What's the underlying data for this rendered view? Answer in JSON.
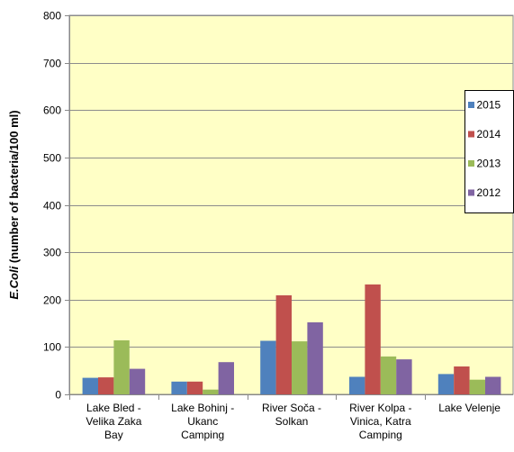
{
  "chart_data": {
    "type": "bar",
    "ylabel_italic": "E.Coli",
    "ylabel_rest": " (number of bacteria/100 ml)",
    "ylim": [
      0,
      800
    ],
    "yticks": [
      0,
      100,
      200,
      300,
      400,
      500,
      600,
      700,
      800
    ],
    "grid": true,
    "legend_position": "right",
    "plot_background": "#ffffc6",
    "categories": [
      [
        "Lake Bled -",
        "Velika Zaka",
        "Bay"
      ],
      [
        "Lake Bohinj -",
        "Ukanc",
        "Camping"
      ],
      [
        "River Soča -",
        "Solkan"
      ],
      [
        "River Kolpa -",
        "Vinica,  Katra",
        "Camping"
      ],
      [
        "Lake Velenje"
      ]
    ],
    "series": [
      {
        "name": "2015",
        "color": "#4f81bd",
        "values": [
          35,
          27,
          113,
          37,
          43
        ]
      },
      {
        "name": "2014",
        "color": "#c0504d",
        "values": [
          36,
          27,
          209,
          232,
          59
        ]
      },
      {
        "name": "2013",
        "color": "#9bbb59",
        "values": [
          114,
          10,
          112,
          80,
          31
        ]
      },
      {
        "name": "2012",
        "color": "#8064a2",
        "values": [
          54,
          68,
          152,
          74,
          37
        ]
      }
    ]
  }
}
